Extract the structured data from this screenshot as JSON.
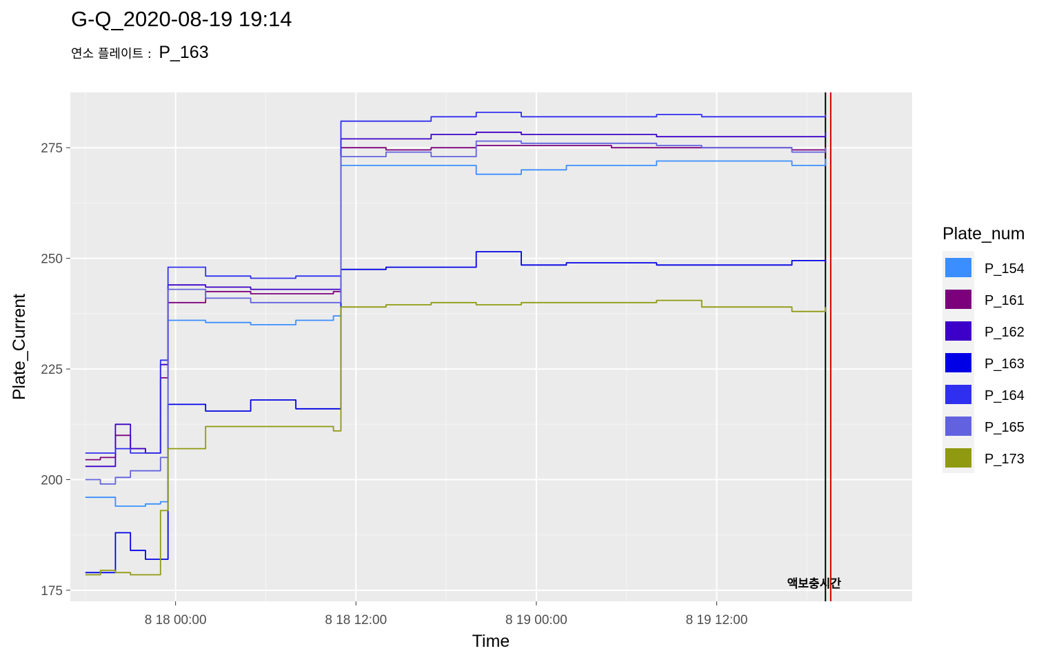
{
  "chart_data": {
    "type": "line",
    "title": "G-Q_2020-08-19 19:14",
    "subtitle_label": "연소 플레이트 :",
    "subtitle_value": "P_163",
    "xlabel": "Time",
    "ylabel": "Plate_Current",
    "legend_title": "Plate_num",
    "legend_position": "right",
    "grid": true,
    "xlim": [
      "2020-08-17 17:00",
      "2020-08-20 01:00"
    ],
    "ylim": [
      172.5,
      287.5
    ],
    "x_ticks": [
      "2020-08-18 00:00",
      "2020-08-18 12:00",
      "2020-08-19 00:00",
      "2020-08-19 12:00"
    ],
    "x_tick_labels": [
      "8 18 00:00",
      "8 18 12:00",
      "8 19 00:00",
      "8 19 12:00"
    ],
    "y_ticks": [
      175,
      200,
      225,
      250,
      275
    ],
    "vlines": [
      {
        "x": "2020-08-19 19:14",
        "color": "#000000"
      },
      {
        "x": "2020-08-19 19:35",
        "color": "#CC0000",
        "label": "액보충시간"
      }
    ],
    "series": [
      {
        "name": "P_154",
        "color": "#3A8EFF",
        "points": [
          [
            "2020-08-17 18:00",
            196
          ],
          [
            "2020-08-17 19:00",
            196
          ],
          [
            "2020-08-17 20:00",
            194
          ],
          [
            "2020-08-17 21:00",
            194
          ],
          [
            "2020-08-17 22:00",
            194.5
          ],
          [
            "2020-08-17 23:00",
            195
          ],
          [
            "2020-08-17 23:30",
            236
          ],
          [
            "2020-08-18 02:00",
            235.5
          ],
          [
            "2020-08-18 05:00",
            235
          ],
          [
            "2020-08-18 08:00",
            236
          ],
          [
            "2020-08-18 10:30",
            237
          ],
          [
            "2020-08-18 11:00",
            271
          ],
          [
            "2020-08-18 14:00",
            271
          ],
          [
            "2020-08-18 17:00",
            271
          ],
          [
            "2020-08-18 20:00",
            269
          ],
          [
            "2020-08-18 23:00",
            270
          ],
          [
            "2020-08-19 02:00",
            271
          ],
          [
            "2020-08-19 05:00",
            271
          ],
          [
            "2020-08-19 08:00",
            272
          ],
          [
            "2020-08-19 11:00",
            272
          ],
          [
            "2020-08-19 14:00",
            272
          ],
          [
            "2020-08-19 17:00",
            271
          ],
          [
            "2020-08-19 19:14",
            272.5
          ]
        ]
      },
      {
        "name": "P_161",
        "color": "#7C007C",
        "points": [
          [
            "2020-08-17 18:00",
            204.5
          ],
          [
            "2020-08-17 19:00",
            205
          ],
          [
            "2020-08-17 20:00",
            210
          ],
          [
            "2020-08-17 21:00",
            207
          ],
          [
            "2020-08-17 22:00",
            206
          ],
          [
            "2020-08-17 23:00",
            223
          ],
          [
            "2020-08-17 23:30",
            240
          ],
          [
            "2020-08-18 02:00",
            242.5
          ],
          [
            "2020-08-18 05:00",
            242
          ],
          [
            "2020-08-18 08:00",
            242
          ],
          [
            "2020-08-18 10:30",
            242.5
          ],
          [
            "2020-08-18 11:00",
            275
          ],
          [
            "2020-08-18 14:00",
            274.5
          ],
          [
            "2020-08-18 17:00",
            275
          ],
          [
            "2020-08-18 20:00",
            275.5
          ],
          [
            "2020-08-18 23:00",
            275.5
          ],
          [
            "2020-08-19 02:00",
            275.5
          ],
          [
            "2020-08-19 05:00",
            275
          ],
          [
            "2020-08-19 08:00",
            275
          ],
          [
            "2020-08-19 11:00",
            275
          ],
          [
            "2020-08-19 14:00",
            275
          ],
          [
            "2020-08-19 17:00",
            274.5
          ],
          [
            "2020-08-19 19:14",
            275
          ]
        ]
      },
      {
        "name": "P_162",
        "color": "#3C00C8",
        "points": [
          [
            "2020-08-17 18:00",
            203
          ],
          [
            "2020-08-17 19:00",
            203
          ],
          [
            "2020-08-17 20:00",
            212.5
          ],
          [
            "2020-08-17 21:00",
            207
          ],
          [
            "2020-08-17 22:00",
            206
          ],
          [
            "2020-08-17 23:00",
            226
          ],
          [
            "2020-08-17 23:30",
            244
          ],
          [
            "2020-08-18 02:00",
            243.5
          ],
          [
            "2020-08-18 05:00",
            243
          ],
          [
            "2020-08-18 08:00",
            243
          ],
          [
            "2020-08-18 10:30",
            243
          ],
          [
            "2020-08-18 11:00",
            277
          ],
          [
            "2020-08-18 14:00",
            277
          ],
          [
            "2020-08-18 17:00",
            278
          ],
          [
            "2020-08-18 20:00",
            278.5
          ],
          [
            "2020-08-18 23:00",
            278
          ],
          [
            "2020-08-19 02:00",
            278
          ],
          [
            "2020-08-19 05:00",
            278
          ],
          [
            "2020-08-19 08:00",
            277.5
          ],
          [
            "2020-08-19 11:00",
            277.5
          ],
          [
            "2020-08-19 14:00",
            277.5
          ],
          [
            "2020-08-19 17:00",
            277.5
          ],
          [
            "2020-08-19 19:14",
            278.5
          ]
        ]
      },
      {
        "name": "P_163",
        "color": "#0000E6",
        "points": [
          [
            "2020-08-17 18:00",
            179
          ],
          [
            "2020-08-17 19:00",
            179
          ],
          [
            "2020-08-17 20:00",
            188
          ],
          [
            "2020-08-17 21:00",
            184
          ],
          [
            "2020-08-17 22:00",
            182
          ],
          [
            "2020-08-17 23:00",
            182
          ],
          [
            "2020-08-17 23:30",
            217
          ],
          [
            "2020-08-18 02:00",
            215.5
          ],
          [
            "2020-08-18 05:00",
            218
          ],
          [
            "2020-08-18 08:00",
            216
          ],
          [
            "2020-08-18 10:30",
            216
          ],
          [
            "2020-08-18 11:00",
            247.5
          ],
          [
            "2020-08-18 14:00",
            248
          ],
          [
            "2020-08-18 17:00",
            248
          ],
          [
            "2020-08-18 20:00",
            251.5
          ],
          [
            "2020-08-18 23:00",
            248.5
          ],
          [
            "2020-08-19 02:00",
            249
          ],
          [
            "2020-08-19 05:00",
            249
          ],
          [
            "2020-08-19 08:00",
            248.5
          ],
          [
            "2020-08-19 11:00",
            248.5
          ],
          [
            "2020-08-19 14:00",
            248.5
          ],
          [
            "2020-08-19 17:00",
            249.5
          ],
          [
            "2020-08-19 19:14",
            249
          ]
        ]
      },
      {
        "name": "P_164",
        "color": "#2F2FF0",
        "points": [
          [
            "2020-08-17 18:00",
            206
          ],
          [
            "2020-08-17 19:00",
            206
          ],
          [
            "2020-08-17 20:00",
            207
          ],
          [
            "2020-08-17 21:00",
            206
          ],
          [
            "2020-08-17 22:00",
            206
          ],
          [
            "2020-08-17 23:00",
            227
          ],
          [
            "2020-08-17 23:30",
            248
          ],
          [
            "2020-08-18 02:00",
            246
          ],
          [
            "2020-08-18 05:00",
            245.5
          ],
          [
            "2020-08-18 08:00",
            246
          ],
          [
            "2020-08-18 10:30",
            246
          ],
          [
            "2020-08-18 11:00",
            281
          ],
          [
            "2020-08-18 14:00",
            281
          ],
          [
            "2020-08-18 17:00",
            282
          ],
          [
            "2020-08-18 20:00",
            283
          ],
          [
            "2020-08-18 23:00",
            282
          ],
          [
            "2020-08-19 02:00",
            282
          ],
          [
            "2020-08-19 05:00",
            282
          ],
          [
            "2020-08-19 08:00",
            282.5
          ],
          [
            "2020-08-19 11:00",
            282
          ],
          [
            "2020-08-19 14:00",
            282
          ],
          [
            "2020-08-19 17:00",
            282
          ],
          [
            "2020-08-19 19:14",
            282.5
          ]
        ]
      },
      {
        "name": "P_165",
        "color": "#6262E0",
        "points": [
          [
            "2020-08-17 18:00",
            200
          ],
          [
            "2020-08-17 19:00",
            199
          ],
          [
            "2020-08-17 20:00",
            200.5
          ],
          [
            "2020-08-17 21:00",
            202
          ],
          [
            "2020-08-17 22:00",
            202
          ],
          [
            "2020-08-17 23:00",
            205
          ],
          [
            "2020-08-17 23:30",
            243
          ],
          [
            "2020-08-18 02:00",
            241
          ],
          [
            "2020-08-18 05:00",
            240
          ],
          [
            "2020-08-18 08:00",
            240
          ],
          [
            "2020-08-18 10:30",
            240
          ],
          [
            "2020-08-18 11:00",
            273
          ],
          [
            "2020-08-18 14:00",
            274
          ],
          [
            "2020-08-18 17:00",
            273
          ],
          [
            "2020-08-18 20:00",
            276.5
          ],
          [
            "2020-08-18 23:00",
            276
          ],
          [
            "2020-08-19 02:00",
            276
          ],
          [
            "2020-08-19 05:00",
            276
          ],
          [
            "2020-08-19 08:00",
            275.5
          ],
          [
            "2020-08-19 11:00",
            275
          ],
          [
            "2020-08-19 14:00",
            275
          ],
          [
            "2020-08-19 17:00",
            274
          ],
          [
            "2020-08-19 19:14",
            275
          ]
        ]
      },
      {
        "name": "P_173",
        "color": "#8F9A10",
        "points": [
          [
            "2020-08-17 18:00",
            178.5
          ],
          [
            "2020-08-17 19:00",
            179.5
          ],
          [
            "2020-08-17 20:00",
            179
          ],
          [
            "2020-08-17 21:00",
            178.5
          ],
          [
            "2020-08-17 22:00",
            178.5
          ],
          [
            "2020-08-17 23:00",
            193
          ],
          [
            "2020-08-17 23:30",
            207
          ],
          [
            "2020-08-18 02:00",
            212
          ],
          [
            "2020-08-18 05:00",
            212
          ],
          [
            "2020-08-18 08:00",
            212
          ],
          [
            "2020-08-18 10:30",
            211
          ],
          [
            "2020-08-18 11:00",
            239
          ],
          [
            "2020-08-18 14:00",
            239.5
          ],
          [
            "2020-08-18 17:00",
            240
          ],
          [
            "2020-08-18 20:00",
            239.5
          ],
          [
            "2020-08-18 23:00",
            240
          ],
          [
            "2020-08-19 02:00",
            240
          ],
          [
            "2020-08-19 05:00",
            240
          ],
          [
            "2020-08-19 08:00",
            240.5
          ],
          [
            "2020-08-19 11:00",
            239
          ],
          [
            "2020-08-19 14:00",
            239
          ],
          [
            "2020-08-19 17:00",
            238
          ],
          [
            "2020-08-19 19:14",
            239
          ]
        ]
      }
    ]
  }
}
